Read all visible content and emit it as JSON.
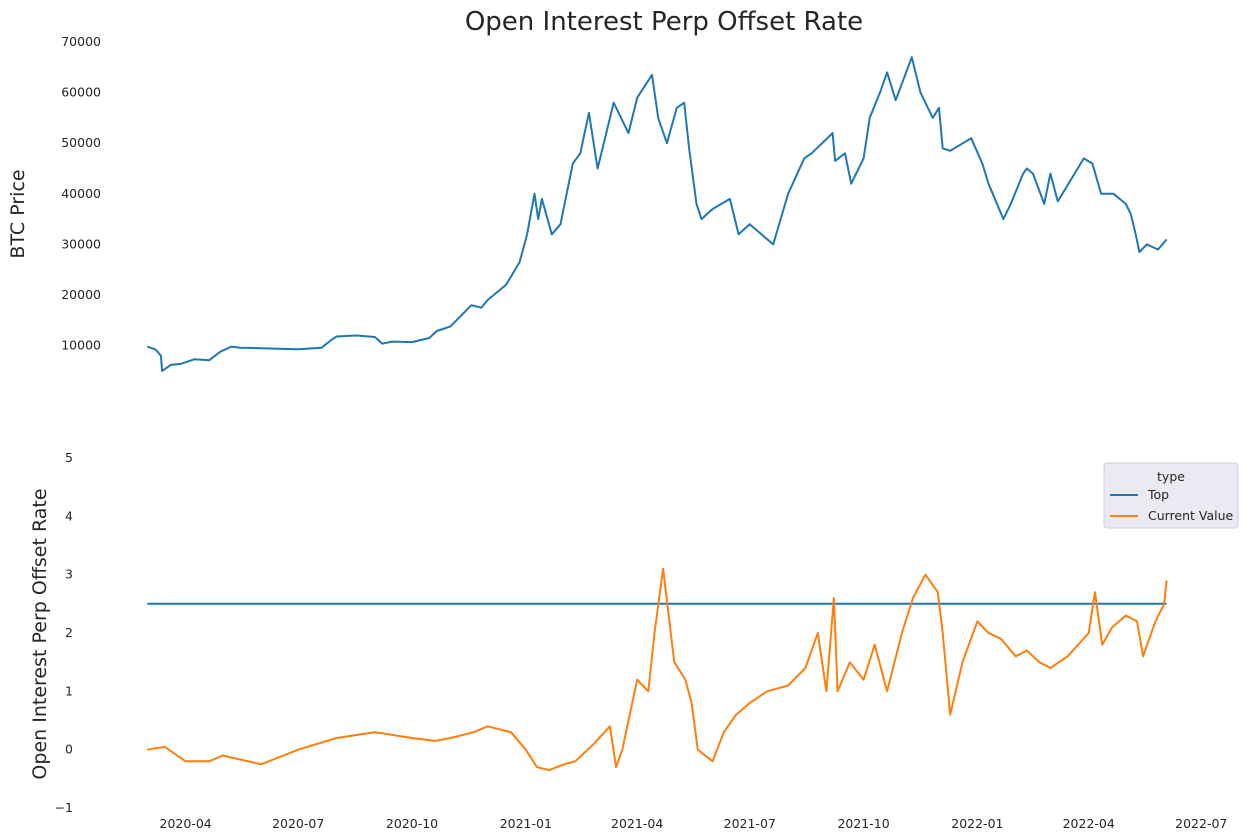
{
  "chart_data": [
    {
      "type": "line",
      "title": "Open Interest Perp Offset Rate",
      "xlabel": "",
      "ylabel": "BTC  Price",
      "ylim": [
        4000,
        70000
      ],
      "yticks": [
        10000,
        20000,
        30000,
        40000,
        50000,
        60000,
        70000
      ],
      "xlim": [
        "2020-02-12",
        "2022-07-04"
      ],
      "grid": false,
      "series": [
        {
          "color": "#1f77b4",
          "x": [
            "2020-03-01",
            "2020-03-08",
            "2020-03-12",
            "2020-03-13",
            "2020-03-20",
            "2020-03-28",
            "2020-04-08",
            "2020-04-20",
            "2020-04-29",
            "2020-05-08",
            "2020-05-15",
            "2020-06-01",
            "2020-06-15",
            "2020-07-01",
            "2020-07-20",
            "2020-07-27",
            "2020-08-01",
            "2020-08-17",
            "2020-09-01",
            "2020-09-07",
            "2020-09-15",
            "2020-10-01",
            "2020-10-15",
            "2020-10-21",
            "2020-11-01",
            "2020-11-18",
            "2020-11-26",
            "2020-12-01",
            "2020-12-16",
            "2020-12-27",
            "2021-01-02",
            "2021-01-08",
            "2021-01-11",
            "2021-01-14",
            "2021-01-22",
            "2021-01-29",
            "2021-02-08",
            "2021-02-14",
            "2021-02-21",
            "2021-02-28",
            "2021-03-05",
            "2021-03-13",
            "2021-03-25",
            "2021-04-01",
            "2021-04-13",
            "2021-04-18",
            "2021-04-25",
            "2021-05-03",
            "2021-05-09",
            "2021-05-13",
            "2021-05-19",
            "2021-05-23",
            "2021-06-01",
            "2021-06-15",
            "2021-06-22",
            "2021-07-01",
            "2021-07-20",
            "2021-08-01",
            "2021-08-14",
            "2021-08-20",
            "2021-09-06",
            "2021-09-08",
            "2021-09-16",
            "2021-09-21",
            "2021-10-01",
            "2021-10-06",
            "2021-10-15",
            "2021-10-20",
            "2021-10-27",
            "2021-11-09",
            "2021-11-16",
            "2021-11-26",
            "2021-12-01",
            "2021-12-04",
            "2021-12-10",
            "2021-12-27",
            "2022-01-05",
            "2022-01-10",
            "2022-01-22",
            "2022-01-28",
            "2022-02-07",
            "2022-02-10",
            "2022-02-15",
            "2022-02-24",
            "2022-03-01",
            "2022-03-07",
            "2022-03-28",
            "2022-04-04",
            "2022-04-11",
            "2022-04-21",
            "2022-05-01",
            "2022-05-05",
            "2022-05-09",
            "2022-05-12",
            "2022-05-18",
            "2022-05-27",
            "2022-06-03"
          ],
          "y": [
            9800,
            9200,
            8000,
            5000,
            6200,
            6400,
            7300,
            7100,
            8800,
            9800,
            9600,
            9500,
            9400,
            9300,
            9600,
            11000,
            11800,
            12000,
            11700,
            10400,
            10800,
            10700,
            11500,
            12900,
            13800,
            18000,
            17500,
            19000,
            22000,
            26500,
            32000,
            40000,
            35000,
            39000,
            32000,
            34000,
            46000,
            48000,
            56000,
            45000,
            50000,
            58000,
            52000,
            59000,
            63500,
            55000,
            50000,
            57000,
            58000,
            49000,
            38000,
            35000,
            37000,
            39000,
            32000,
            34000,
            30000,
            40000,
            47000,
            48000,
            52000,
            46500,
            48000,
            42000,
            47000,
            55000,
            60500,
            64000,
            58500,
            67000,
            60000,
            55000,
            57000,
            49000,
            48500,
            51000,
            46000,
            42000,
            35000,
            38000,
            44000,
            45000,
            44000,
            38000,
            44000,
            38500,
            47000,
            46000,
            40000,
            40000,
            38000,
            36000,
            32000,
            28500,
            30000,
            29000,
            31000
          ]
        }
      ]
    },
    {
      "type": "line",
      "title": "",
      "xlabel": "",
      "ylabel": "Open Interest Perp Offset Rate",
      "ylim": [
        -1,
        5
      ],
      "yticks": [
        -1,
        0,
        1,
        2,
        3,
        4,
        5
      ],
      "xlim": [
        "2020-02-12",
        "2022-07-04"
      ],
      "xticks": [
        "2020-04",
        "2020-07",
        "2020-10",
        "2021-01",
        "2021-04",
        "2021-07",
        "2021-10",
        "2022-01",
        "2022-04",
        "2022-07"
      ],
      "grid": false,
      "legend": {
        "title": "type",
        "placement": "upper right"
      },
      "series": [
        {
          "name": "Top",
          "color": "#1f77b4",
          "x": [
            "2020-03-01",
            "2022-06-03"
          ],
          "y": [
            2.5,
            2.5
          ]
        },
        {
          "name": "Current Value",
          "color": "#ff7f0e",
          "x": [
            "2020-03-01",
            "2020-03-15",
            "2020-04-01",
            "2020-04-20",
            "2020-05-01",
            "2020-06-01",
            "2020-07-01",
            "2020-08-01",
            "2020-09-01",
            "2020-10-01",
            "2020-10-20",
            "2020-11-01",
            "2020-11-20",
            "2020-12-01",
            "2020-12-20",
            "2021-01-01",
            "2021-01-10",
            "2021-01-20",
            "2021-02-01",
            "2021-02-10",
            "2021-02-25",
            "2021-03-10",
            "2021-03-15",
            "2021-03-20",
            "2021-04-01",
            "2021-04-10",
            "2021-04-15",
            "2021-04-22",
            "2021-05-01",
            "2021-05-10",
            "2021-05-15",
            "2021-05-20",
            "2021-06-01",
            "2021-06-10",
            "2021-06-20",
            "2021-07-01",
            "2021-07-15",
            "2021-08-01",
            "2021-08-15",
            "2021-08-25",
            "2021-09-01",
            "2021-09-07",
            "2021-09-10",
            "2021-09-20",
            "2021-10-01",
            "2021-10-10",
            "2021-10-20",
            "2021-11-01",
            "2021-11-10",
            "2021-11-20",
            "2021-11-30",
            "2021-12-04",
            "2021-12-10",
            "2021-12-20",
            "2022-01-01",
            "2022-01-10",
            "2022-01-20",
            "2022-02-01",
            "2022-02-10",
            "2022-02-20",
            "2022-03-01",
            "2022-03-15",
            "2022-04-01",
            "2022-04-06",
            "2022-04-12",
            "2022-04-20",
            "2022-05-01",
            "2022-05-10",
            "2022-05-15",
            "2022-05-25",
            "2022-06-01",
            "2022-06-03"
          ],
          "y": [
            0.0,
            0.05,
            -0.2,
            -0.2,
            -0.1,
            -0.25,
            0.0,
            0.2,
            0.3,
            0.2,
            0.15,
            0.2,
            0.3,
            0.4,
            0.3,
            0.0,
            -0.3,
            -0.35,
            -0.25,
            -0.2,
            0.1,
            0.4,
            -0.3,
            0.0,
            1.2,
            1.0,
            2.0,
            3.1,
            1.5,
            1.2,
            0.8,
            0.0,
            -0.2,
            0.3,
            0.6,
            0.8,
            1.0,
            1.1,
            1.4,
            2.0,
            1.0,
            2.6,
            1.0,
            1.5,
            1.2,
            1.8,
            1.0,
            2.0,
            2.6,
            3.0,
            2.7,
            2.0,
            0.6,
            1.5,
            2.2,
            2.0,
            1.9,
            1.6,
            1.7,
            1.5,
            1.4,
            1.6,
            2.0,
            2.7,
            1.8,
            2.1,
            2.3,
            2.2,
            1.6,
            2.2,
            2.5,
            2.9
          ]
        }
      ]
    }
  ]
}
